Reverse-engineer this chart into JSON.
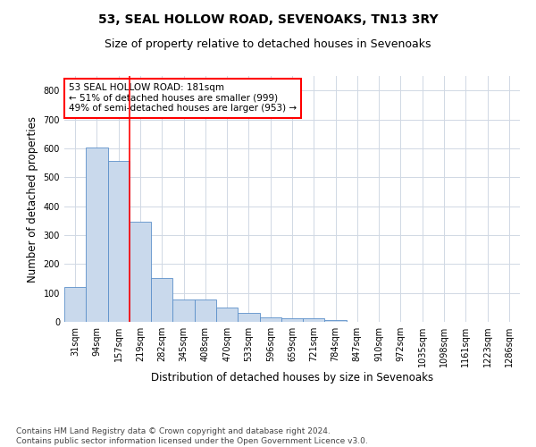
{
  "title": "53, SEAL HOLLOW ROAD, SEVENOAKS, TN13 3RY",
  "subtitle": "Size of property relative to detached houses in Sevenoaks",
  "xlabel": "Distribution of detached houses by size in Sevenoaks",
  "ylabel": "Number of detached properties",
  "categories": [
    "31sqm",
    "94sqm",
    "157sqm",
    "219sqm",
    "282sqm",
    "345sqm",
    "408sqm",
    "470sqm",
    "533sqm",
    "596sqm",
    "659sqm",
    "721sqm",
    "784sqm",
    "847sqm",
    "910sqm",
    "972sqm",
    "1035sqm",
    "1098sqm",
    "1161sqm",
    "1223sqm",
    "1286sqm"
  ],
  "values": [
    122,
    603,
    556,
    347,
    150,
    78,
    78,
    50,
    30,
    15,
    13,
    12,
    5,
    0,
    0,
    0,
    0,
    0,
    0,
    0,
    0
  ],
  "bar_color": "#c9d9ec",
  "bar_edge_color": "#5b8fc9",
  "grid_color": "#d0d8e4",
  "red_line_x": 2.5,
  "annotation_text": "53 SEAL HOLLOW ROAD: 181sqm\n← 51% of detached houses are smaller (999)\n49% of semi-detached houses are larger (953) →",
  "annotation_box_color": "white",
  "annotation_box_edge_color": "red",
  "footer": "Contains HM Land Registry data © Crown copyright and database right 2024.\nContains public sector information licensed under the Open Government Licence v3.0.",
  "ylim": [
    0,
    850
  ],
  "yticks": [
    0,
    100,
    200,
    300,
    400,
    500,
    600,
    700,
    800
  ],
  "background_color": "white",
  "title_fontsize": 10,
  "subtitle_fontsize": 9,
  "axis_fontsize": 8.5,
  "tick_fontsize": 7,
  "footer_fontsize": 6.5,
  "annotation_fontsize": 7.5
}
